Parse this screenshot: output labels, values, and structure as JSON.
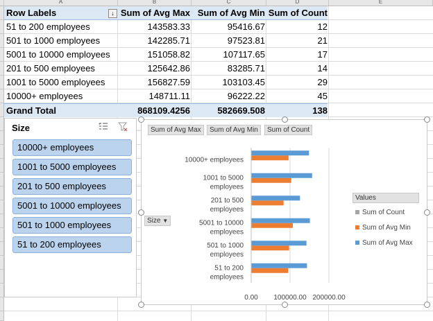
{
  "columns": [
    "A",
    "B",
    "C",
    "D",
    "E"
  ],
  "pivot": {
    "header": [
      "Row Labels",
      "Sum of Avg Max",
      "Sum of Avg Min",
      "Sum of Count"
    ],
    "rows": [
      [
        "51 to 200 employees",
        "143583.33",
        "95416.67",
        "12"
      ],
      [
        "501 to 1000 employees",
        "142285.71",
        "97523.81",
        "21"
      ],
      [
        "5001 to 10000 employees",
        "151058.82",
        "107117.65",
        "17"
      ],
      [
        "201 to 500 employees",
        "125642.86",
        "83285.71",
        "14"
      ],
      [
        "1001 to 5000 employees",
        "156827.59",
        "103103.45",
        "29"
      ],
      [
        "10000+ employees",
        "148711.11",
        "96222.22",
        "45"
      ]
    ],
    "total": [
      "Grand Total",
      "868109.4256",
      "582669.508",
      "138"
    ],
    "filter_icon": "sort-filter-icon"
  },
  "slicer": {
    "title": "Size",
    "multiselect_icon": "multi-select-icon",
    "clear_icon": "clear-filter-icon",
    "items": [
      "10000+ employees",
      "1001 to 5000 employees",
      "201 to 500 employees",
      "5001 to 10000 employees",
      "501 to 1000 employees",
      "51 to 200 employees"
    ]
  },
  "chart": {
    "field_buttons": [
      "Sum of Avg Max",
      "Sum of Avg Min",
      "Sum of Count"
    ],
    "axis_field_button": "Size",
    "axis_field_icon": "dropdown-icon",
    "legend_title": "Values",
    "legend": [
      {
        "label": "Sum of Count",
        "color": "#a5a5a5"
      },
      {
        "label": "Sum of Avg Min",
        "color": "#ed7d31"
      },
      {
        "label": "Sum of Avg Max",
        "color": "#5b9bd5"
      }
    ]
  },
  "chart_data": {
    "type": "bar",
    "orientation": "horizontal",
    "categories": [
      [
        "10000+ employees"
      ],
      [
        "1001 to 5000",
        "employees"
      ],
      [
        "201 to 500",
        "employees"
      ],
      [
        "5001 to 10000",
        "employees"
      ],
      [
        "501 to 1000",
        "employees"
      ],
      [
        "51 to 200",
        "employees"
      ]
    ],
    "series": [
      {
        "name": "Sum of Count",
        "color": "#a5a5a5",
        "values": [
          45,
          29,
          14,
          17,
          21,
          12
        ]
      },
      {
        "name": "Sum of Avg Min",
        "color": "#ed7d31",
        "values": [
          96222.22,
          103103.45,
          83285.71,
          107117.65,
          97523.81,
          95416.67
        ]
      },
      {
        "name": "Sum of Avg Max",
        "color": "#5b9bd5",
        "values": [
          148711.11,
          156827.59,
          125642.86,
          151058.82,
          142285.71,
          143583.33
        ]
      }
    ],
    "xtick_labels": [
      "0.00",
      "100000.00",
      "200000.00"
    ],
    "xlim": [
      0,
      200000
    ],
    "grid": true,
    "legend": "right"
  }
}
